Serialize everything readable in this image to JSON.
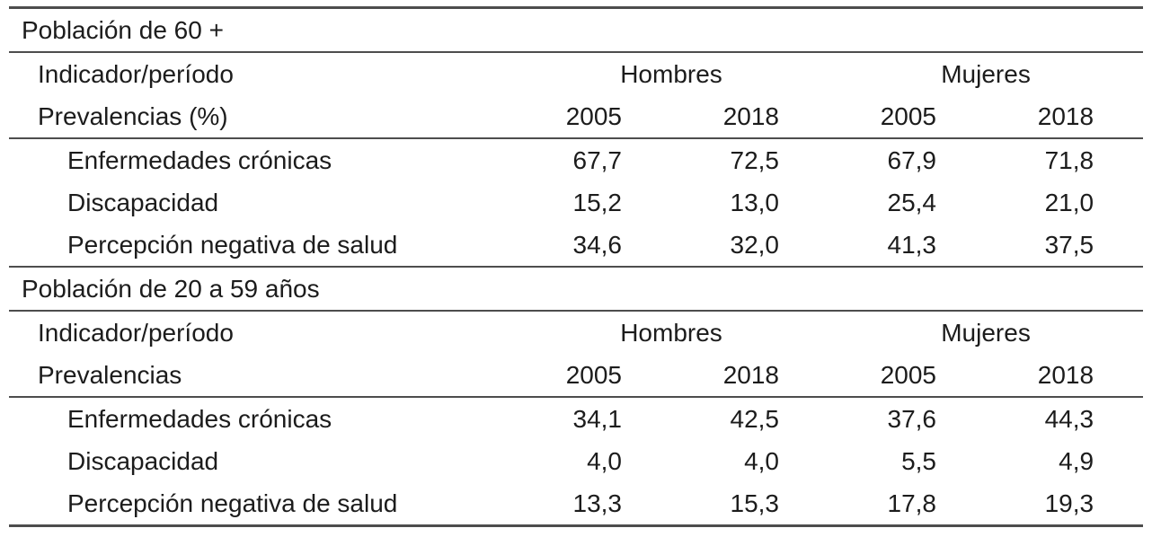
{
  "table": {
    "colors": {
      "text": "#1c1c1c",
      "rule": "#4d4d4d",
      "background": "#ffffff"
    },
    "sections": [
      {
        "title": "Población de 60 +",
        "indicator_header": "Indicador/período",
        "prevalence_label": "Prevalencias (%)",
        "groups": [
          "Hombres",
          "Mujeres"
        ],
        "years": [
          "2005",
          "2018",
          "2005",
          "2018"
        ],
        "rows": [
          {
            "label": "Enfermedades crónicas",
            "values": [
              "67,7",
              "72,5",
              "67,9",
              "71,8"
            ]
          },
          {
            "label": "Discapacidad",
            "values": [
              "15,2",
              "13,0",
              "25,4",
              "21,0"
            ]
          },
          {
            "label": "Percepción negativa de salud",
            "values": [
              "34,6",
              "32,0",
              "41,3",
              "37,5"
            ]
          }
        ]
      },
      {
        "title": "Población de 20 a 59 años",
        "indicator_header": "Indicador/período",
        "prevalence_label": "Prevalencias",
        "groups": [
          "Hombres",
          "Mujeres"
        ],
        "years": [
          "2005",
          "2018",
          "2005",
          "2018"
        ],
        "rows": [
          {
            "label": "Enfermedades crónicas",
            "values": [
              "34,1",
              "42,5",
              "37,6",
              "44,3"
            ]
          },
          {
            "label": "Discapacidad",
            "values": [
              "4,0",
              "4,0",
              "5,5",
              "4,9"
            ]
          },
          {
            "label": "Percepción negativa de salud",
            "values": [
              "13,3",
              "15,3",
              "17,8",
              "19,3"
            ]
          }
        ]
      }
    ]
  }
}
